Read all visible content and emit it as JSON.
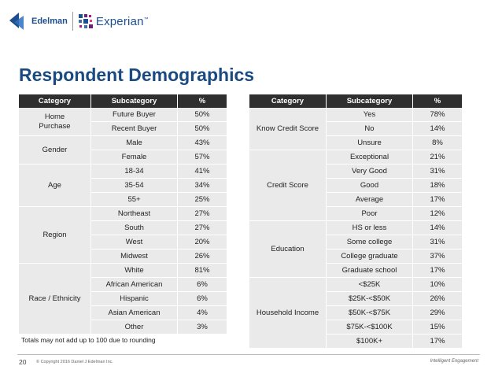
{
  "header": {
    "edelman_logo_text": "Edelman",
    "experian_logo_text": "Experian",
    "experian_tm": "™"
  },
  "title": "Respondent Demographics",
  "left_table": {
    "headers": [
      "Category",
      "Subcategory",
      "%"
    ],
    "groups": [
      {
        "category": "Home\nPurchase",
        "rows": [
          [
            "Future Buyer",
            "50%"
          ],
          [
            "Recent Buyer",
            "50%"
          ]
        ]
      },
      {
        "category": "Gender",
        "rows": [
          [
            "Male",
            "43%"
          ],
          [
            "Female",
            "57%"
          ]
        ]
      },
      {
        "category": "Age",
        "rows": [
          [
            "18-34",
            "41%"
          ],
          [
            "35-54",
            "34%"
          ],
          [
            "55+",
            "25%"
          ]
        ]
      },
      {
        "category": "Region",
        "rows": [
          [
            "Northeast",
            "27%"
          ],
          [
            "South",
            "27%"
          ],
          [
            "West",
            "20%"
          ],
          [
            "Midwest",
            "26%"
          ]
        ]
      },
      {
        "category": "Race / Ethnicity",
        "rows": [
          [
            "White",
            "81%"
          ],
          [
            "African American",
            "6%"
          ],
          [
            "Hispanic",
            "6%"
          ],
          [
            "Asian American",
            "4%"
          ],
          [
            "Other",
            "3%"
          ]
        ]
      }
    ]
  },
  "right_table": {
    "headers": [
      "Category",
      "Subcategory",
      "%"
    ],
    "groups": [
      {
        "category": "Know Credit Score",
        "rows": [
          [
            "Yes",
            "78%"
          ],
          [
            "No",
            "14%"
          ],
          [
            "Unsure",
            "8%"
          ]
        ]
      },
      {
        "category": "Credit Score",
        "rows": [
          [
            "Exceptional",
            "21%"
          ],
          [
            "Very Good",
            "31%"
          ],
          [
            "Good",
            "18%"
          ],
          [
            "Average",
            "17%"
          ],
          [
            "Poor",
            "12%"
          ]
        ]
      },
      {
        "category": "Education",
        "rows": [
          [
            "HS or less",
            "14%"
          ],
          [
            "Some college",
            "31%"
          ],
          [
            "College graduate",
            "37%"
          ],
          [
            "Graduate school",
            "17%"
          ]
        ]
      },
      {
        "category": "Household Income",
        "rows": [
          [
            "<$25K",
            "10%"
          ],
          [
            "$25K-<$50K",
            "26%"
          ],
          [
            "$50K-<$75K",
            "29%"
          ],
          [
            "$75K-<$100K",
            "15%"
          ],
          [
            "$100K+",
            "17%"
          ]
        ]
      }
    ]
  },
  "note": "Totals may not add up to 100 due to rounding",
  "footer": {
    "page_number": "20",
    "copyright": "© Copyright 2016 Daniel J Edelman Inc.",
    "tagline": "Intelligent Engagement"
  },
  "colors": {
    "title": "#1a4a80",
    "header_bg": "#2f2f2f",
    "cell_bg": "#eaeaea"
  }
}
